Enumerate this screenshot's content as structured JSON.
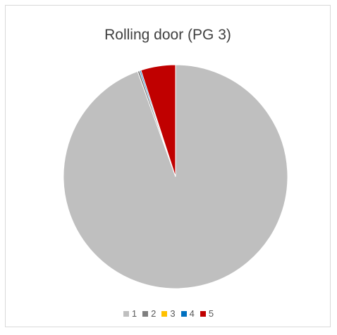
{
  "chart_data": {
    "type": "pie",
    "title": "Rolling door (PG 3)",
    "categories": [
      "1",
      "2",
      "3",
      "4",
      "5"
    ],
    "values": [
      94.5,
      0.3,
      0.0,
      0.2,
      5.0
    ],
    "colors": [
      "#bfbfbf",
      "#7f7f7f",
      "#ffc000",
      "#0070c0",
      "#c00000"
    ],
    "legend": "bottom"
  }
}
